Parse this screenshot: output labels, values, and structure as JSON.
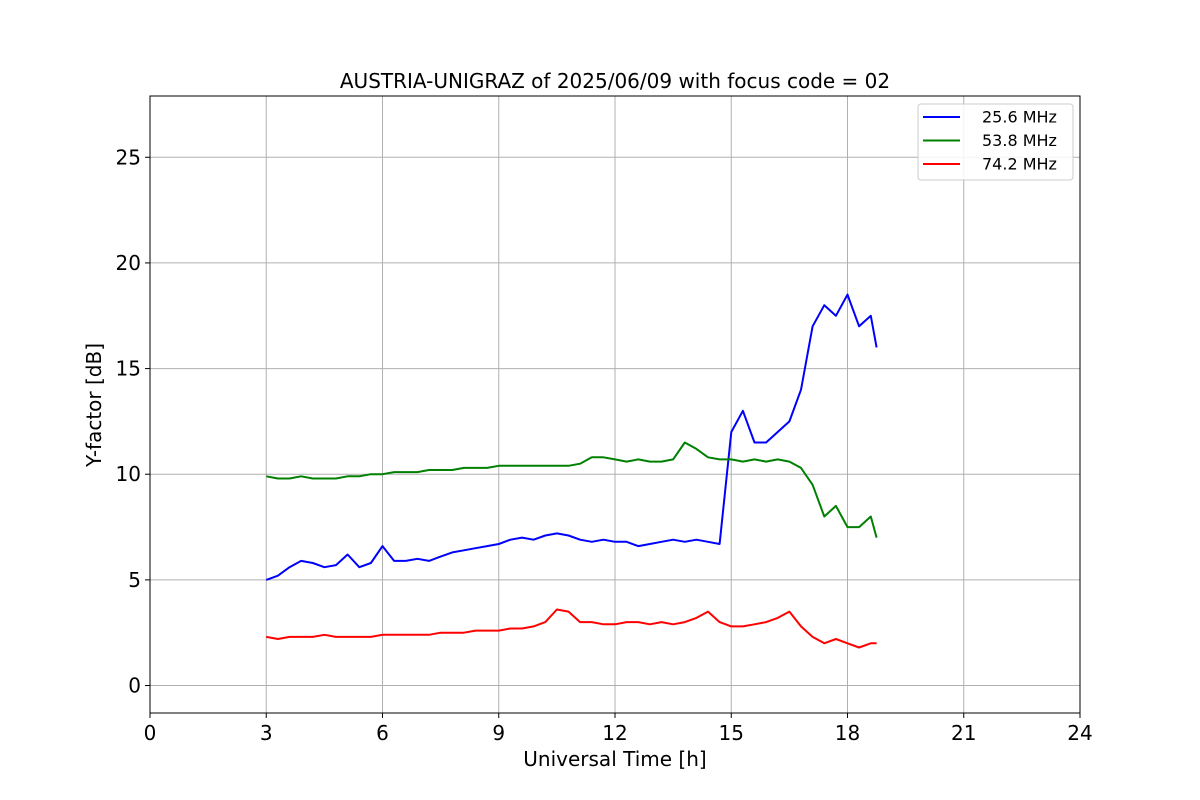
{
  "chart_data": {
    "type": "line",
    "title": "AUSTRIA-UNIGRAZ of 2025/06/09 with focus code = 02",
    "xlabel": "Universal Time [h]",
    "ylabel": "Y-factor [dB]",
    "xlim": [
      0,
      24
    ],
    "ylim": [
      -1.3,
      27.9
    ],
    "xticks": [
      0,
      3,
      6,
      9,
      12,
      15,
      18,
      21,
      24
    ],
    "xtick_labels": [
      "0",
      "3",
      "6",
      "9",
      "12",
      "15",
      "18",
      "21",
      "24"
    ],
    "yticks": [
      0,
      5,
      10,
      15,
      20,
      25
    ],
    "ytick_labels": [
      "0",
      "5",
      "10",
      "15",
      "20",
      "25"
    ],
    "grid": true,
    "legend_position": "top-right",
    "series": [
      {
        "name": "25.6 MHz",
        "color": "#0000ff",
        "x": [
          3.0,
          3.3,
          3.6,
          3.9,
          4.2,
          4.5,
          4.8,
          5.1,
          5.4,
          5.7,
          6.0,
          6.3,
          6.6,
          6.9,
          7.2,
          7.5,
          7.8,
          8.1,
          8.4,
          8.7,
          9.0,
          9.3,
          9.6,
          9.9,
          10.2,
          10.5,
          10.8,
          11.1,
          11.4,
          11.7,
          12.0,
          12.3,
          12.6,
          12.9,
          13.2,
          13.5,
          13.8,
          14.1,
          14.4,
          14.7,
          15.0,
          15.3,
          15.6,
          15.9,
          16.2,
          16.5,
          16.8,
          17.1,
          17.4,
          17.7,
          18.0,
          18.3,
          18.6,
          18.75
        ],
        "y": [
          5.0,
          5.2,
          5.6,
          5.9,
          5.8,
          5.6,
          5.7,
          6.2,
          5.6,
          5.8,
          6.6,
          5.9,
          5.9,
          6.0,
          5.9,
          6.1,
          6.3,
          6.4,
          6.5,
          6.6,
          6.7,
          6.9,
          7.0,
          6.9,
          7.1,
          7.2,
          7.1,
          6.9,
          6.8,
          6.9,
          6.8,
          6.8,
          6.6,
          6.7,
          6.8,
          6.9,
          6.8,
          6.9,
          6.8,
          6.7,
          12.0,
          13.0,
          11.5,
          11.5,
          12.0,
          12.5,
          14.0,
          17.0,
          18.0,
          17.5,
          18.5,
          17.0,
          17.5,
          16.0
        ]
      },
      {
        "name": "53.8 MHz",
        "color": "#008000",
        "x": [
          3.0,
          3.3,
          3.6,
          3.9,
          4.2,
          4.5,
          4.8,
          5.1,
          5.4,
          5.7,
          6.0,
          6.3,
          6.6,
          6.9,
          7.2,
          7.5,
          7.8,
          8.1,
          8.4,
          8.7,
          9.0,
          9.3,
          9.6,
          9.9,
          10.2,
          10.5,
          10.8,
          11.1,
          11.4,
          11.7,
          12.0,
          12.3,
          12.6,
          12.9,
          13.2,
          13.5,
          13.8,
          14.1,
          14.4,
          14.7,
          15.0,
          15.3,
          15.6,
          15.9,
          16.2,
          16.5,
          16.8,
          17.1,
          17.4,
          17.7,
          18.0,
          18.3,
          18.6,
          18.75
        ],
        "y": [
          9.9,
          9.8,
          9.8,
          9.9,
          9.8,
          9.8,
          9.8,
          9.9,
          9.9,
          10.0,
          10.0,
          10.1,
          10.1,
          10.1,
          10.2,
          10.2,
          10.2,
          10.3,
          10.3,
          10.3,
          10.4,
          10.4,
          10.4,
          10.4,
          10.4,
          10.4,
          10.4,
          10.5,
          10.8,
          10.8,
          10.7,
          10.6,
          10.7,
          10.6,
          10.6,
          10.7,
          11.5,
          11.2,
          10.8,
          10.7,
          10.7,
          10.6,
          10.7,
          10.6,
          10.7,
          10.6,
          10.3,
          9.5,
          8.0,
          8.5,
          7.5,
          7.5,
          8.0,
          7.0
        ]
      },
      {
        "name": "74.2 MHz",
        "color": "#ff0000",
        "x": [
          3.0,
          3.3,
          3.6,
          3.9,
          4.2,
          4.5,
          4.8,
          5.1,
          5.4,
          5.7,
          6.0,
          6.3,
          6.6,
          6.9,
          7.2,
          7.5,
          7.8,
          8.1,
          8.4,
          8.7,
          9.0,
          9.3,
          9.6,
          9.9,
          10.2,
          10.5,
          10.8,
          11.1,
          11.4,
          11.7,
          12.0,
          12.3,
          12.6,
          12.9,
          13.2,
          13.5,
          13.8,
          14.1,
          14.4,
          14.7,
          15.0,
          15.3,
          15.6,
          15.9,
          16.2,
          16.5,
          16.8,
          17.1,
          17.4,
          17.7,
          18.0,
          18.3,
          18.6,
          18.75
        ],
        "y": [
          2.3,
          2.2,
          2.3,
          2.3,
          2.3,
          2.4,
          2.3,
          2.3,
          2.3,
          2.3,
          2.4,
          2.4,
          2.4,
          2.4,
          2.4,
          2.5,
          2.5,
          2.5,
          2.6,
          2.6,
          2.6,
          2.7,
          2.7,
          2.8,
          3.0,
          3.6,
          3.5,
          3.0,
          3.0,
          2.9,
          2.9,
          3.0,
          3.0,
          2.9,
          3.0,
          2.9,
          3.0,
          3.2,
          3.5,
          3.0,
          2.8,
          2.8,
          2.9,
          3.0,
          3.2,
          3.5,
          2.8,
          2.3,
          2.0,
          2.2,
          2.0,
          1.8,
          2.0,
          2.0
        ]
      }
    ],
    "annotations": []
  }
}
